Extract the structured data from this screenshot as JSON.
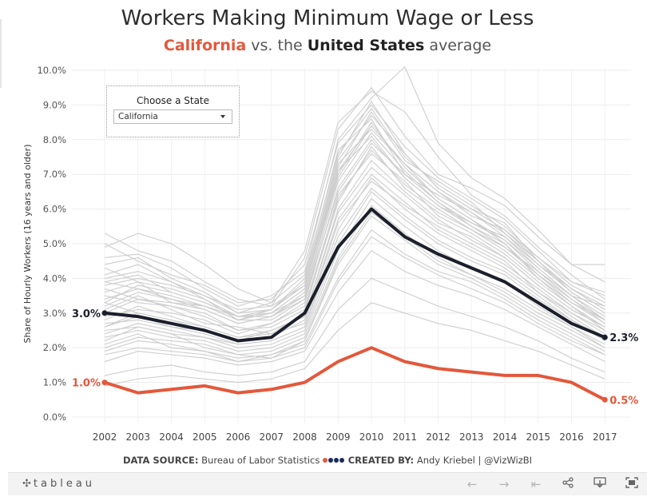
{
  "title": "Workers Making Minimum Wage or Less",
  "subtitle": {
    "state": "California",
    "mid": "vs. the",
    "us": "United States",
    "end": "average"
  },
  "filter": {
    "label": "Choose a State",
    "selected": "California"
  },
  "footer": {
    "source_label": "DATA SOURCE:",
    "source_value": "Bureau of Labor Statistics",
    "created_label": "CREATED BY:",
    "created_value": "Andy Kriebel | @VizWizBI"
  },
  "toolbar": {
    "logo": "tableau",
    "icons": [
      "back-icon",
      "forward-icon",
      "revert-icon",
      "share-icon",
      "download-icon",
      "fullscreen-icon"
    ]
  },
  "colors": {
    "california": "#e3583b",
    "us": "#1c1f2b",
    "other_states": "#cdcdcd",
    "grid": "#ebebeb"
  },
  "chart_data": {
    "type": "line",
    "title": "Workers Making Minimum Wage or Less",
    "xlabel": "",
    "ylabel": "Share of Hourly Workers (16 years and older)",
    "ylim": [
      0,
      10
    ],
    "y_ticks": [
      "0.0%",
      "1.0%",
      "2.0%",
      "3.0%",
      "4.0%",
      "5.0%",
      "6.0%",
      "7.0%",
      "8.0%",
      "9.0%",
      "10.0%"
    ],
    "y_tick_values": [
      0,
      1,
      2,
      3,
      4,
      5,
      6,
      7,
      8,
      9,
      10
    ],
    "x": [
      "2002",
      "2003",
      "2004",
      "2005",
      "2006",
      "2007",
      "2008",
      "2009",
      "2010",
      "2011",
      "2012",
      "2013",
      "2014",
      "2015",
      "2016",
      "2017"
    ],
    "grid": true,
    "series": [
      {
        "name": "United States",
        "values": [
          3.0,
          2.9,
          2.7,
          2.5,
          2.2,
          2.3,
          3.0,
          4.9,
          6.0,
          5.2,
          4.7,
          4.3,
          3.9,
          3.3,
          2.7,
          2.3
        ]
      },
      {
        "name": "California",
        "values": [
          1.0,
          0.7,
          0.8,
          0.9,
          0.7,
          0.8,
          1.0,
          1.6,
          2.0,
          1.6,
          1.4,
          1.3,
          1.2,
          1.2,
          1.0,
          0.5
        ]
      }
    ],
    "end_labels": {
      "United States": {
        "start": "3.0%",
        "end": "2.3%"
      },
      "California": {
        "start": "1.0%",
        "end": "0.5%"
      }
    },
    "background_series": [
      [
        3.0,
        3.4,
        3.2,
        2.9,
        2.5,
        2.6,
        3.1,
        6.2,
        7.8,
        6.6,
        5.9,
        5.4,
        4.9,
        4.2,
        3.5,
        2.9
      ],
      [
        4.1,
        4.4,
        3.9,
        3.5,
        3.0,
        3.1,
        3.9,
        7.5,
        9.1,
        7.6,
        6.6,
        6.0,
        5.6,
        4.5,
        3.7,
        3.1
      ],
      [
        2.6,
        2.9,
        2.6,
        2.4,
        2.1,
        2.2,
        2.6,
        5.4,
        6.9,
        6.0,
        5.3,
        4.8,
        4.3,
        3.6,
        3.0,
        2.4
      ],
      [
        5.3,
        4.8,
        4.5,
        3.9,
        3.4,
        3.2,
        4.6,
        8.3,
        9.5,
        8.1,
        7.0,
        6.6,
        6.1,
        5.2,
        4.4,
        4.4
      ],
      [
        3.6,
        3.9,
        3.3,
        3.1,
        2.7,
        2.9,
        3.5,
        7.0,
        8.5,
        7.2,
        6.3,
        5.7,
        5.0,
        4.0,
        3.3,
        2.7
      ],
      [
        2.2,
        2.6,
        2.4,
        2.0,
        1.8,
        1.9,
        2.3,
        4.6,
        6.1,
        5.3,
        4.6,
        4.1,
        3.7,
        3.1,
        2.6,
        2.1
      ],
      [
        4.6,
        4.7,
        4.3,
        3.7,
        3.2,
        3.5,
        4.2,
        8.0,
        9.2,
        10.1,
        7.9,
        6.9,
        6.3,
        5.4,
        4.4,
        3.9
      ],
      [
        3.3,
        3.0,
        2.8,
        2.6,
        2.3,
        2.5,
        2.9,
        6.0,
        7.4,
        6.5,
        5.7,
        5.1,
        4.6,
        3.8,
        3.1,
        2.6
      ],
      [
        2.9,
        3.1,
        3.0,
        2.8,
        2.4,
        2.7,
        3.3,
        6.6,
        8.0,
        6.9,
        6.1,
        5.5,
        5.0,
        4.1,
        3.4,
        2.8
      ],
      [
        4.9,
        5.3,
        5.0,
        4.4,
        3.7,
        3.3,
        4.8,
        8.5,
        9.4,
        8.8,
        7.5,
        6.4,
        5.8,
        4.9,
        4.1,
        3.4
      ],
      [
        1.9,
        2.2,
        2.1,
        1.9,
        1.6,
        1.8,
        2.1,
        4.0,
        5.4,
        4.7,
        4.2,
        3.9,
        3.4,
        2.8,
        2.3,
        1.8
      ],
      [
        3.9,
        4.1,
        3.6,
        3.3,
        2.9,
        3.0,
        3.7,
        7.2,
        8.8,
        7.4,
        6.8,
        6.2,
        5.3,
        4.4,
        3.6,
        3.0
      ],
      [
        2.4,
        2.7,
        2.5,
        2.3,
        2.0,
        2.1,
        2.5,
        5.0,
        6.5,
        5.7,
        5.0,
        4.5,
        4.1,
        3.4,
        2.8,
        2.2
      ],
      [
        3.1,
        3.5,
        3.1,
        2.7,
        2.6,
        2.4,
        3.0,
        6.4,
        7.6,
        6.8,
        5.8,
        5.3,
        4.7,
        3.9,
        3.2,
        2.5
      ],
      [
        4.3,
        3.9,
        3.7,
        3.4,
        2.8,
        3.1,
        4.0,
        7.7,
        8.6,
        7.0,
        6.4,
        5.9,
        5.2,
        4.3,
        3.5,
        3.2
      ],
      [
        2.0,
        2.3,
        2.2,
        2.1,
        1.8,
        1.7,
        2.2,
        4.4,
        5.8,
        5.1,
        4.4,
        4.0,
        3.5,
        2.9,
        2.4,
        1.9
      ],
      [
        3.4,
        3.7,
        3.5,
        3.2,
        2.8,
        2.8,
        3.4,
        6.8,
        8.2,
        7.1,
        6.2,
        5.6,
        5.1,
        4.2,
        3.4,
        2.7
      ],
      [
        2.7,
        2.8,
        2.6,
        2.5,
        2.2,
        2.3,
        2.8,
        5.7,
        7.0,
        6.2,
        5.4,
        4.9,
        4.4,
        3.7,
        3.0,
        2.5
      ],
      [
        3.8,
        4.0,
        3.8,
        3.5,
        3.1,
        3.2,
        3.8,
        7.3,
        8.3,
        7.3,
        6.5,
        5.8,
        5.4,
        4.6,
        3.8,
        3.3
      ],
      [
        5.0,
        4.5,
        4.1,
        3.8,
        3.3,
        3.4,
        4.4,
        7.9,
        9.0,
        7.8,
        6.9,
        6.3,
        5.7,
        4.8,
        3.9,
        3.6
      ],
      [
        2.3,
        2.5,
        2.3,
        2.2,
        1.9,
        2.0,
        2.4,
        4.8,
        6.3,
        5.5,
        4.8,
        4.3,
        3.9,
        3.2,
        2.6,
        2.0
      ],
      [
        3.5,
        3.3,
        3.2,
        3.0,
        2.5,
        2.7,
        3.2,
        6.3,
        7.7,
        6.7,
        6.0,
        5.4,
        4.8,
        4.0,
        3.2,
        2.6
      ],
      [
        1.6,
        1.9,
        1.8,
        1.7,
        1.5,
        1.6,
        1.9,
        3.6,
        4.8,
        4.2,
        3.8,
        3.5,
        3.1,
        2.6,
        2.1,
        1.6
      ],
      [
        4.4,
        4.6,
        4.0,
        3.6,
        3.0,
        3.3,
        4.1,
        7.6,
        8.9,
        7.5,
        6.7,
        6.1,
        5.5,
        4.6,
        3.9,
        3.5
      ],
      [
        2.8,
        3.2,
        2.9,
        2.6,
        2.3,
        2.4,
        2.7,
        5.6,
        6.8,
        6.1,
        5.5,
        5.0,
        4.5,
        3.6,
        2.9,
        2.3
      ],
      [
        3.2,
        3.6,
        3.4,
        3.1,
        2.7,
        2.9,
        3.6,
        6.9,
        8.4,
        7.3,
        6.3,
        5.7,
        5.1,
        4.3,
        3.5,
        2.8
      ],
      [
        1.2,
        1.4,
        1.5,
        1.3,
        1.2,
        1.3,
        1.6,
        3.1,
        4.0,
        3.6,
        3.2,
        2.9,
        2.6,
        2.2,
        1.7,
        1.3
      ],
      [
        3.7,
        3.4,
        3.3,
        3.2,
        2.9,
        3.0,
        3.5,
        7.1,
        8.1,
        6.9,
        6.1,
        5.6,
        5.2,
        4.4,
        3.7,
        3.1
      ],
      [
        2.5,
        2.6,
        2.4,
        2.3,
        2.1,
        2.2,
        2.6,
        5.2,
        6.6,
        5.8,
        5.1,
        4.6,
        4.2,
        3.5,
        2.8,
        2.3
      ],
      [
        4.0,
        4.2,
        3.9,
        3.4,
        2.9,
        3.1,
        3.8,
        7.4,
        8.7,
        7.6,
        6.6,
        6.0,
        5.4,
        4.5,
        3.6,
        3.0
      ],
      [
        2.1,
        2.4,
        2.0,
        1.9,
        1.7,
        1.8,
        2.2,
        4.5,
        5.9,
        5.2,
        4.5,
        4.1,
        3.6,
        3.0,
        2.5,
        2.0
      ],
      [
        3.3,
        3.8,
        3.6,
        3.3,
        2.9,
        2.9,
        3.4,
        6.5,
        7.9,
        7.0,
        6.2,
        5.5,
        4.9,
        4.1,
        3.3,
        2.8
      ],
      [
        0.9,
        1.1,
        1.2,
        1.1,
        1.0,
        1.1,
        1.4,
        2.5,
        3.3,
        3.0,
        2.7,
        2.5,
        2.2,
        1.9,
        1.5,
        1.1
      ],
      [
        2.6,
        3.0,
        2.8,
        2.5,
        2.2,
        2.5,
        2.9,
        5.9,
        7.2,
        6.4,
        5.6,
        5.2,
        4.6,
        3.8,
        3.1,
        2.6
      ],
      [
        3.9,
        3.7,
        3.4,
        3.2,
        2.8,
        3.0,
        3.7,
        7.1,
        8.4,
        7.3,
        6.5,
        5.9,
        5.3,
        4.5,
        3.7,
        3.2
      ],
      [
        1.8,
        2.0,
        1.9,
        1.8,
        1.6,
        1.7,
        2.0,
        3.9,
        5.2,
        4.6,
        4.1,
        3.7,
        3.3,
        2.7,
        2.2,
        1.8
      ]
    ]
  }
}
